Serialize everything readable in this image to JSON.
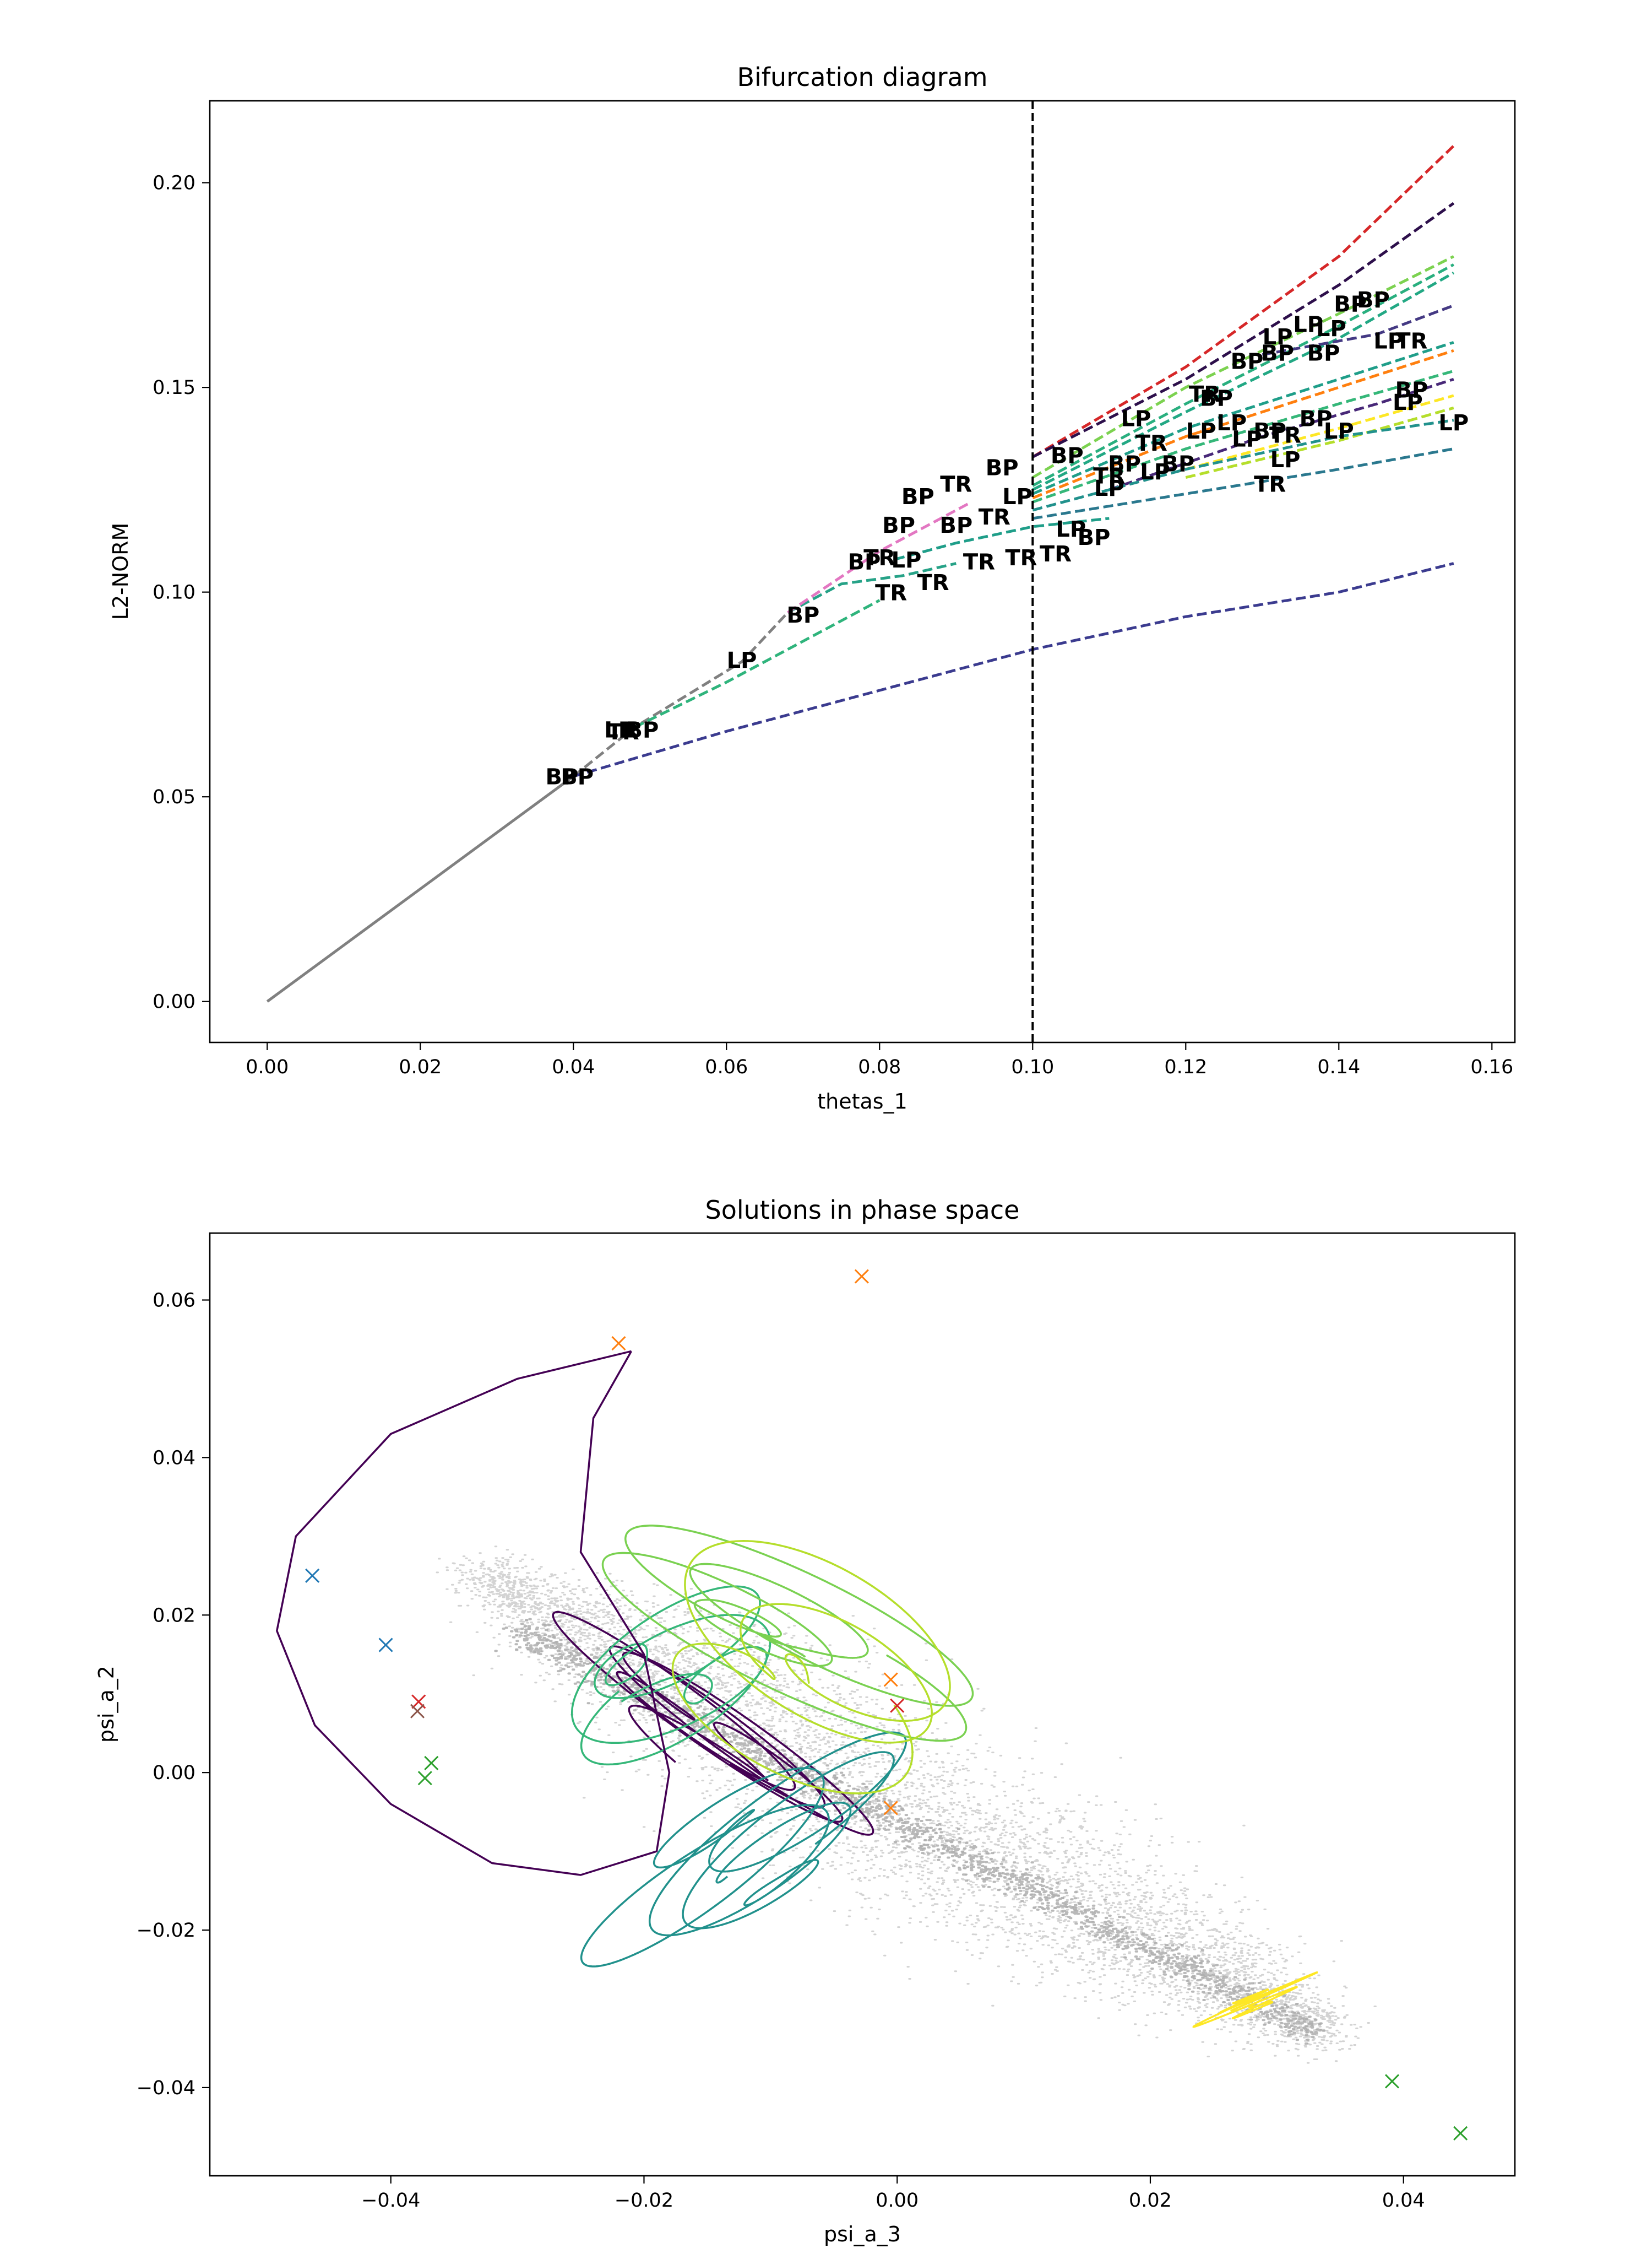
{
  "chart_data": [
    {
      "type": "line",
      "title": "Bifurcation diagram",
      "xlabel": "thetas_1",
      "ylabel": "L2-NORM",
      "xlim": [
        -0.0075,
        0.163
      ],
      "ylim": [
        -0.01,
        0.22
      ],
      "xticks": [
        "0.00",
        "0.02",
        "0.04",
        "0.06",
        "0.08",
        "0.10",
        "0.12",
        "0.14",
        "0.16"
      ],
      "yticks": [
        "0.00",
        "0.05",
        "0.10",
        "0.15",
        "0.20"
      ],
      "vline": {
        "x": 0.1,
        "style": "dashed",
        "color": "#000000"
      },
      "series": [
        {
          "color": "#808080",
          "style": "solid",
          "points": [
            [
              0,
              0
            ],
            [
              0.04,
              0.055
            ]
          ]
        },
        {
          "color": "#808080",
          "style": "dashed",
          "points": [
            [
              0.04,
              0.055
            ],
            [
              0.048,
              0.067
            ],
            [
              0.062,
              0.083
            ],
            [
              0.068,
              0.095
            ]
          ]
        },
        {
          "color": "#3b3b8f",
          "style": "dashed",
          "points": [
            [
              0.04,
              0.055
            ],
            [
              0.06,
              0.066
            ],
            [
              0.08,
              0.076
            ],
            [
              0.1,
              0.086
            ],
            [
              0.12,
              0.094
            ],
            [
              0.14,
              0.1
            ],
            [
              0.155,
              0.107
            ]
          ]
        },
        {
          "color": "#2fb47c",
          "style": "dashed",
          "points": [
            [
              0.048,
              0.067
            ],
            [
              0.06,
              0.078
            ],
            [
              0.07,
              0.088
            ],
            [
              0.08,
              0.098
            ]
          ]
        },
        {
          "color": "#26a287",
          "style": "dashed",
          "points": [
            [
              0.068,
              0.095
            ],
            [
              0.075,
              0.102
            ],
            [
              0.083,
              0.104
            ],
            [
              0.09,
              0.107
            ]
          ]
        },
        {
          "color": "#d62728",
          "style": "dashed",
          "points": [
            [
              0.1,
              0.133
            ],
            [
              0.12,
              0.155
            ],
            [
              0.14,
              0.182
            ],
            [
              0.155,
              0.209
            ]
          ]
        },
        {
          "color": "#2d0f4b",
          "style": "dashed",
          "points": [
            [
              0.1,
              0.133
            ],
            [
              0.12,
              0.152
            ],
            [
              0.14,
              0.175
            ],
            [
              0.155,
              0.195
            ]
          ]
        },
        {
          "color": "#7cd250",
          "style": "dashed",
          "points": [
            [
              0.1,
              0.128
            ],
            [
              0.12,
              0.15
            ],
            [
              0.14,
              0.168
            ],
            [
              0.155,
              0.182
            ]
          ]
        },
        {
          "color": "#29af7f",
          "style": "dashed",
          "points": [
            [
              0.1,
              0.126
            ],
            [
              0.12,
              0.146
            ],
            [
              0.14,
              0.165
            ],
            [
              0.155,
              0.18
            ]
          ]
        },
        {
          "color": "#22a884",
          "style": "dashed",
          "points": [
            [
              0.1,
              0.125
            ],
            [
              0.12,
              0.144
            ],
            [
              0.14,
              0.162
            ],
            [
              0.155,
              0.178
            ]
          ]
        },
        {
          "color": "#443983",
          "style": "dashed",
          "points": [
            [
              0.13,
              0.158
            ],
            [
              0.145,
              0.163
            ],
            [
              0.155,
              0.17
            ]
          ]
        },
        {
          "color": "#1f9e89",
          "style": "dashed",
          "points": [
            [
              0.1,
              0.124
            ],
            [
              0.12,
              0.14
            ],
            [
              0.14,
              0.152
            ],
            [
              0.155,
              0.161
            ]
          ]
        },
        {
          "color": "#ff7f0e",
          "style": "dashed",
          "points": [
            [
              0.1,
              0.123
            ],
            [
              0.12,
              0.138
            ],
            [
              0.14,
              0.15
            ],
            [
              0.155,
              0.159
            ]
          ]
        },
        {
          "color": "#35b779",
          "style": "dashed",
          "points": [
            [
              0.1,
              0.122
            ],
            [
              0.12,
              0.135
            ],
            [
              0.14,
              0.146
            ],
            [
              0.155,
              0.154
            ]
          ]
        },
        {
          "color": "#482878",
          "style": "dashed",
          "points": [
            [
              0.11,
              0.125
            ],
            [
              0.13,
              0.138
            ],
            [
              0.145,
              0.146
            ],
            [
              0.155,
              0.152
            ]
          ]
        },
        {
          "color": "#fde725",
          "style": "dashed",
          "points": [
            [
              0.12,
              0.13
            ],
            [
              0.14,
              0.14
            ],
            [
              0.155,
              0.148
            ]
          ]
        },
        {
          "color": "#b5de2b",
          "style": "dashed",
          "points": [
            [
              0.12,
              0.128
            ],
            [
              0.14,
              0.137
            ],
            [
              0.155,
              0.145
            ]
          ]
        },
        {
          "color": "#2a788e",
          "style": "dashed",
          "points": [
            [
              0.1,
              0.118
            ],
            [
              0.12,
              0.124
            ],
            [
              0.14,
              0.13
            ],
            [
              0.155,
              0.135
            ]
          ]
        },
        {
          "color": "#21918c",
          "style": "dashed",
          "points": [
            [
              0.1,
              0.12
            ],
            [
              0.12,
              0.13
            ],
            [
              0.14,
              0.138
            ],
            [
              0.155,
              0.142
            ]
          ]
        },
        {
          "color": "#e377c2",
          "style": "dashed",
          "points": [
            [
              0.068,
              0.095
            ],
            [
              0.08,
              0.11
            ],
            [
              0.092,
              0.122
            ]
          ]
        },
        {
          "color": "#1f9e89",
          "style": "dashed",
          "points": [
            [
              0.082,
              0.108
            ],
            [
              0.09,
              0.112
            ],
            [
              0.1,
              0.116
            ],
            [
              0.11,
              0.118
            ]
          ]
        }
      ],
      "annotations": [
        {
          "text": "BP",
          "x": 0.0385,
          "y": 0.0545
        },
        {
          "text": "BP",
          "x": 0.0405,
          "y": 0.0545
        },
        {
          "text": "LP",
          "x": 0.046,
          "y": 0.066
        },
        {
          "text": "TR",
          "x": 0.0465,
          "y": 0.0655
        },
        {
          "text": "BP",
          "x": 0.049,
          "y": 0.066
        },
        {
          "text": "LP",
          "x": 0.062,
          "y": 0.083
        },
        {
          "text": "BP",
          "x": 0.07,
          "y": 0.094
        },
        {
          "text": "BP",
          "x": 0.078,
          "y": 0.107
        },
        {
          "text": "TR",
          "x": 0.08,
          "y": 0.108
        },
        {
          "text": "LP",
          "x": 0.0835,
          "y": 0.1075
        },
        {
          "text": "TR",
          "x": 0.0815,
          "y": 0.0995
        },
        {
          "text": "BP",
          "x": 0.0825,
          "y": 0.116
        },
        {
          "text": "TR",
          "x": 0.087,
          "y": 0.102
        },
        {
          "text": "BP",
          "x": 0.09,
          "y": 0.116
        },
        {
          "text": "BP",
          "x": 0.085,
          "y": 0.123
        },
        {
          "text": "TR",
          "x": 0.09,
          "y": 0.126
        },
        {
          "text": "BP",
          "x": 0.096,
          "y": 0.13
        },
        {
          "text": "TR",
          "x": 0.095,
          "y": 0.118
        },
        {
          "text": "LP",
          "x": 0.098,
          "y": 0.123
        },
        {
          "text": "TR",
          "x": 0.093,
          "y": 0.107
        },
        {
          "text": "TR",
          "x": 0.0985,
          "y": 0.108
        },
        {
          "text": "LP",
          "x": 0.105,
          "y": 0.115
        },
        {
          "text": "TR",
          "x": 0.103,
          "y": 0.109
        },
        {
          "text": "BP",
          "x": 0.108,
          "y": 0.113
        },
        {
          "text": "TR",
          "x": 0.11,
          "y": 0.128
        },
        {
          "text": "LP",
          "x": 0.11,
          "y": 0.125
        },
        {
          "text": "BP",
          "x": 0.1045,
          "y": 0.133
        },
        {
          "text": "BP",
          "x": 0.112,
          "y": 0.131
        },
        {
          "text": "LP",
          "x": 0.1135,
          "y": 0.142
        },
        {
          "text": "TR",
          "x": 0.1155,
          "y": 0.136
        },
        {
          "text": "LP",
          "x": 0.116,
          "y": 0.129
        },
        {
          "text": "BP",
          "x": 0.119,
          "y": 0.131
        },
        {
          "text": "LP",
          "x": 0.122,
          "y": 0.139
        },
        {
          "text": "TR",
          "x": 0.1225,
          "y": 0.148
        },
        {
          "text": "BP",
          "x": 0.124,
          "y": 0.147
        },
        {
          "text": "LP",
          "x": 0.126,
          "y": 0.141
        },
        {
          "text": "LP",
          "x": 0.128,
          "y": 0.137
        },
        {
          "text": "BP",
          "x": 0.131,
          "y": 0.139
        },
        {
          "text": "TR",
          "x": 0.133,
          "y": 0.138
        },
        {
          "text": "LP",
          "x": 0.133,
          "y": 0.132
        },
        {
          "text": "TR",
          "x": 0.131,
          "y": 0.126
        },
        {
          "text": "BP",
          "x": 0.128,
          "y": 0.156
        },
        {
          "text": "BP",
          "x": 0.132,
          "y": 0.158
        },
        {
          "text": "LP",
          "x": 0.132,
          "y": 0.162
        },
        {
          "text": "LP",
          "x": 0.136,
          "y": 0.165
        },
        {
          "text": "BP",
          "x": 0.138,
          "y": 0.158
        },
        {
          "text": "LP",
          "x": 0.139,
          "y": 0.164
        },
        {
          "text": "BP",
          "x": 0.1415,
          "y": 0.17
        },
        {
          "text": "BP",
          "x": 0.1445,
          "y": 0.171
        },
        {
          "text": "LP",
          "x": 0.14,
          "y": 0.139
        },
        {
          "text": "BP",
          "x": 0.137,
          "y": 0.142
        },
        {
          "text": "LP",
          "x": 0.1465,
          "y": 0.161
        },
        {
          "text": "TR",
          "x": 0.1495,
          "y": 0.161
        },
        {
          "text": "BP",
          "x": 0.1495,
          "y": 0.149
        },
        {
          "text": "LP",
          "x": 0.149,
          "y": 0.146
        },
        {
          "text": "LP",
          "x": 0.155,
          "y": 0.141
        }
      ]
    },
    {
      "type": "scatter",
      "title": "Solutions in phase space",
      "xlabel": "psi_a_3",
      "ylabel": "psi_a_2",
      "xlim": [
        -0.0543,
        0.0488
      ],
      "ylim": [
        -0.0512,
        0.0685
      ],
      "xticks": [
        "−0.04",
        "−0.02",
        "0.00",
        "0.02",
        "0.04"
      ],
      "yticks": [
        "−0.04",
        "−0.02",
        "0.00",
        "0.02",
        "0.04",
        "0.06"
      ],
      "background_cloud": {
        "color": "#bdbdbd",
        "description": "dense grey point cloud along diagonal band"
      },
      "markers": [
        {
          "x": -0.0028,
          "y": 0.063,
          "color": "#ff7f0e"
        },
        {
          "x": -0.022,
          "y": 0.0545,
          "color": "#ff7f0e"
        },
        {
          "x": -0.0462,
          "y": 0.025,
          "color": "#1f77b4"
        },
        {
          "x": -0.0404,
          "y": 0.0162,
          "color": "#1f77b4"
        },
        {
          "x": -0.0378,
          "y": 0.009,
          "color": "#d62728"
        },
        {
          "x": -0.0379,
          "y": 0.0078,
          "color": "#8c564b"
        },
        {
          "x": -0.0368,
          "y": 0.0012,
          "color": "#2ca02c"
        },
        {
          "x": -0.0373,
          "y": -0.0007,
          "color": "#2ca02c"
        },
        {
          "x": -0.0005,
          "y": 0.0118,
          "color": "#ff7f0e"
        },
        {
          "x": 0.0,
          "y": 0.0085,
          "color": "#d62728"
        },
        {
          "x": -0.0005,
          "y": -0.0045,
          "color": "#ff7f0e"
        },
        {
          "x": 0.0391,
          "y": -0.0392,
          "color": "#2ca02c"
        },
        {
          "x": 0.0445,
          "y": -0.0458,
          "color": "#2ca02c"
        }
      ],
      "trajectories": [
        {
          "color": "#440154",
          "description": "large outer loop from (-0.021, 0.053) around left"
        },
        {
          "color": "#21918c",
          "description": "tangled loops centered near (-0.015, 0.0)"
        },
        {
          "color": "#35b779",
          "description": "loops centered near (-0.012, -0.01)"
        },
        {
          "color": "#7ad151",
          "description": "loops reaching up to (-0.01, 0.05)"
        },
        {
          "color": "#b5de2b",
          "description": "loops near (0.0, 0.02)"
        },
        {
          "color": "#fde725",
          "description": "small loops near (0.028, -0.03)"
        }
      ]
    }
  ]
}
